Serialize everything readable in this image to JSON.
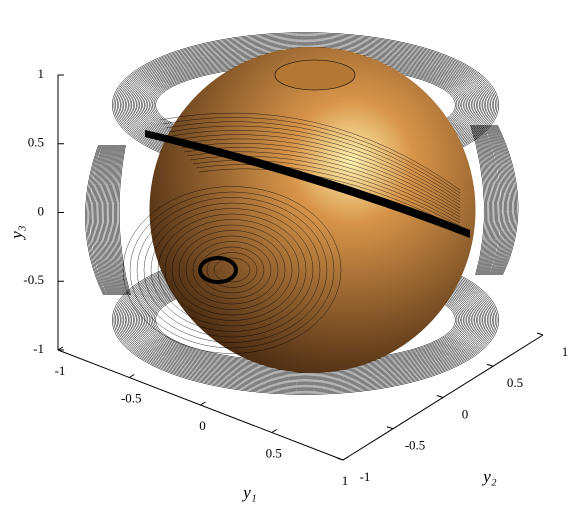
{
  "chart_data": {
    "type": "surface3d",
    "xlabel": "y₁",
    "ylabel": "y₂",
    "zlabel": "y₃",
    "xlim": [
      -1,
      1
    ],
    "ylim": [
      -1,
      1
    ],
    "zlim": [
      -1,
      1
    ],
    "xticks": [
      -1,
      -0.5,
      0,
      0.5,
      1
    ],
    "yticks": [
      -1,
      -0.5,
      0,
      0.5,
      1
    ],
    "zticks": [
      -1,
      -0.5,
      0,
      0.5,
      1
    ],
    "color": "#d8954a"
  }
}
